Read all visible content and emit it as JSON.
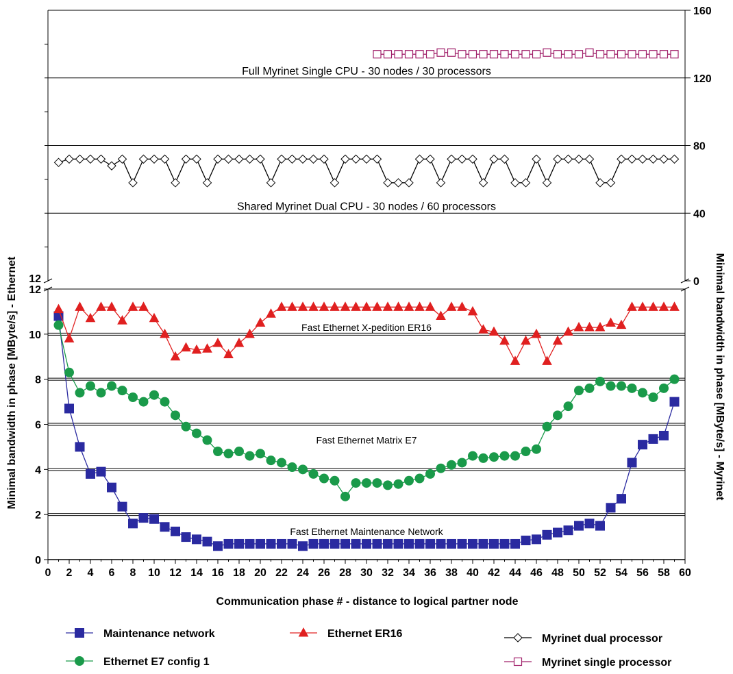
{
  "chart_data": {
    "type": "line",
    "xlabel": "Communication phase # - distance to logical partner node",
    "ylabel_left": "Minimal bandwidth in phase [MByte/s] - Ethernet",
    "ylabel_right": "Minimal bandwidth in phase [MByte/s] - Myrinet",
    "x_ticks": [
      "0",
      "2",
      "4",
      "6",
      "8",
      "10",
      "12",
      "14",
      "16",
      "18",
      "20",
      "22",
      "24",
      "26",
      "28",
      "30",
      "32",
      "34",
      "36",
      "38",
      "40",
      "42",
      "44",
      "46",
      "48",
      "50",
      "52",
      "54",
      "56",
      "58",
      "60"
    ],
    "x_range": [
      0,
      60
    ],
    "lower_panel": {
      "ylim": [
        0,
        12
      ],
      "y_ticks": [
        "0",
        "2",
        "4",
        "6",
        "8",
        "10",
        "12"
      ],
      "top_tick_label": "12",
      "grid": true,
      "annotations": [
        {
          "text": "Fast Ethernet X-pedition ER16",
          "x": 30,
          "y": 10.3
        },
        {
          "text": "Fast Ethernet Matrix E7",
          "x": 30,
          "y": 5.3
        },
        {
          "text": "Fast Ethernet Maintenance Network",
          "x": 30,
          "y": 1.25
        }
      ],
      "series": [
        {
          "name": "Maintenance network",
          "color": "#2a2aa0",
          "marker": "square-filled",
          "x": [
            1,
            2,
            3,
            4,
            5,
            6,
            7,
            8,
            9,
            10,
            11,
            12,
            13,
            14,
            15,
            16,
            17,
            18,
            19,
            20,
            21,
            22,
            23,
            24,
            25,
            26,
            27,
            28,
            29,
            30,
            31,
            32,
            33,
            34,
            35,
            36,
            37,
            38,
            39,
            40,
            41,
            42,
            43,
            44,
            45,
            46,
            47,
            48,
            49,
            50,
            51,
            52,
            53,
            54,
            55,
            56,
            57,
            58,
            59
          ],
          "values": [
            10.8,
            6.7,
            5.0,
            3.8,
            3.9,
            3.2,
            2.35,
            1.6,
            1.85,
            1.8,
            1.45,
            1.25,
            1.0,
            0.9,
            0.8,
            0.6,
            0.7,
            0.7,
            0.7,
            0.7,
            0.7,
            0.7,
            0.7,
            0.6,
            0.7,
            0.7,
            0.7,
            0.7,
            0.7,
            0.7,
            0.7,
            0.7,
            0.7,
            0.7,
            0.7,
            0.7,
            0.7,
            0.7,
            0.7,
            0.7,
            0.7,
            0.7,
            0.7,
            0.7,
            0.85,
            0.9,
            1.1,
            1.2,
            1.3,
            1.5,
            1.6,
            1.5,
            2.3,
            2.7,
            4.3,
            5.1,
            5.35,
            5.5,
            7.0
          ]
        },
        {
          "name": "Ethernet E7 config 1",
          "color": "#1a9a4a",
          "marker": "circle-filled",
          "x": [
            1,
            2,
            3,
            4,
            5,
            6,
            7,
            8,
            9,
            10,
            11,
            12,
            13,
            14,
            15,
            16,
            17,
            18,
            19,
            20,
            21,
            22,
            23,
            24,
            25,
            26,
            27,
            28,
            29,
            30,
            31,
            32,
            33,
            34,
            35,
            36,
            37,
            38,
            39,
            40,
            41,
            42,
            43,
            44,
            45,
            46,
            47,
            48,
            49,
            50,
            51,
            52,
            53,
            54,
            55,
            56,
            57,
            58,
            59
          ],
          "values": [
            10.4,
            8.3,
            7.4,
            7.7,
            7.4,
            7.7,
            7.5,
            7.2,
            7.0,
            7.3,
            7.0,
            6.4,
            5.9,
            5.6,
            5.3,
            4.8,
            4.7,
            4.8,
            4.6,
            4.7,
            4.4,
            4.3,
            4.1,
            4.0,
            3.8,
            3.6,
            3.5,
            2.8,
            3.4,
            3.4,
            3.4,
            3.3,
            3.35,
            3.5,
            3.6,
            3.8,
            4.05,
            4.2,
            4.3,
            4.6,
            4.5,
            4.55,
            4.6,
            4.6,
            4.8,
            4.9,
            5.9,
            6.4,
            6.8,
            7.5,
            7.6,
            7.9,
            7.7,
            7.7,
            7.6,
            7.4,
            7.2,
            7.6,
            8.0
          ]
        },
        {
          "name": "Ethernet ER16",
          "color": "#e02020",
          "marker": "triangle-filled",
          "x": [
            1,
            2,
            3,
            4,
            5,
            6,
            7,
            8,
            9,
            10,
            11,
            12,
            13,
            14,
            15,
            16,
            17,
            18,
            19,
            20,
            21,
            22,
            23,
            24,
            25,
            26,
            27,
            28,
            29,
            30,
            31,
            32,
            33,
            34,
            35,
            36,
            37,
            38,
            39,
            40,
            41,
            42,
            43,
            44,
            45,
            46,
            47,
            48,
            49,
            50,
            51,
            52,
            53,
            54,
            55,
            56,
            57,
            58,
            59
          ],
          "values": [
            11.1,
            9.8,
            11.2,
            10.7,
            11.2,
            11.2,
            10.6,
            11.2,
            11.2,
            10.7,
            10.0,
            9.0,
            9.4,
            9.3,
            9.35,
            9.6,
            9.1,
            9.6,
            10.0,
            10.5,
            10.9,
            11.2,
            11.2,
            11.2,
            11.2,
            11.2,
            11.2,
            11.2,
            11.2,
            11.2,
            11.2,
            11.2,
            11.2,
            11.2,
            11.2,
            11.2,
            10.8,
            11.2,
            11.2,
            11.0,
            10.2,
            10.1,
            9.7,
            8.8,
            9.7,
            10.0,
            8.8,
            9.7,
            10.1,
            10.3,
            10.3,
            10.3,
            10.5,
            10.4,
            11.2,
            11.2,
            11.2,
            11.2,
            11.2
          ]
        }
      ]
    },
    "upper_panel": {
      "ylim": [
        0,
        160
      ],
      "y_ticks_right": [
        "0",
        "40",
        "80",
        "120",
        "160"
      ],
      "grid": true,
      "annotations": [
        {
          "text": "Full Myrinet Single CPU - 30 nodes / 30 processors",
          "x": 30,
          "y": 124
        },
        {
          "text": "Shared Myrinet Dual CPU - 30 nodes / 60 processors",
          "x": 30,
          "y": 44
        }
      ],
      "series": [
        {
          "name": "Myrinet dual processor",
          "color": "#000000",
          "marker": "diamond-open",
          "x": [
            1,
            2,
            3,
            4,
            5,
            6,
            7,
            8,
            9,
            10,
            11,
            12,
            13,
            14,
            15,
            16,
            17,
            18,
            19,
            20,
            21,
            22,
            23,
            24,
            25,
            26,
            27,
            28,
            29,
            30,
            31,
            32,
            33,
            34,
            35,
            36,
            37,
            38,
            39,
            40,
            41,
            42,
            43,
            44,
            45,
            46,
            47,
            48,
            49,
            50,
            51,
            52,
            53,
            54,
            55,
            56,
            57,
            58,
            59
          ],
          "values": [
            70,
            72,
            72,
            72,
            72,
            68,
            72,
            58,
            72,
            72,
            72,
            58,
            72,
            72,
            58,
            72,
            72,
            72,
            72,
            72,
            58,
            72,
            72,
            72,
            72,
            72,
            58,
            72,
            72,
            72,
            72,
            58,
            58,
            58,
            72,
            72,
            58,
            72,
            72,
            72,
            58,
            72,
            72,
            58,
            58,
            72,
            58,
            72,
            72,
            72,
            72,
            58,
            58,
            72,
            72,
            72,
            72,
            72,
            72
          ]
        },
        {
          "name": "Myrinet single processor",
          "color": "#a0206a",
          "marker": "square-open",
          "x": [
            31,
            32,
            33,
            34,
            35,
            36,
            37,
            38,
            39,
            40,
            41,
            42,
            43,
            44,
            45,
            46,
            47,
            48,
            49,
            50,
            51,
            52,
            53,
            54,
            55,
            56,
            57,
            58,
            59
          ],
          "values": [
            134,
            134,
            134,
            134,
            134,
            134,
            135,
            135,
            134,
            134,
            134,
            134,
            134,
            134,
            134,
            134,
            135,
            134,
            134,
            134,
            135,
            134,
            134,
            134,
            134,
            134,
            134,
            134,
            134
          ]
        }
      ]
    },
    "legend": {
      "placement": "bottom",
      "items": [
        {
          "label": "Maintenance network"
        },
        {
          "label": "Ethernet ER16"
        },
        {
          "label": "Myrinet dual processor"
        },
        {
          "label": "Ethernet E7 config 1"
        },
        {
          "label": "Myrinet single processor"
        }
      ]
    }
  }
}
